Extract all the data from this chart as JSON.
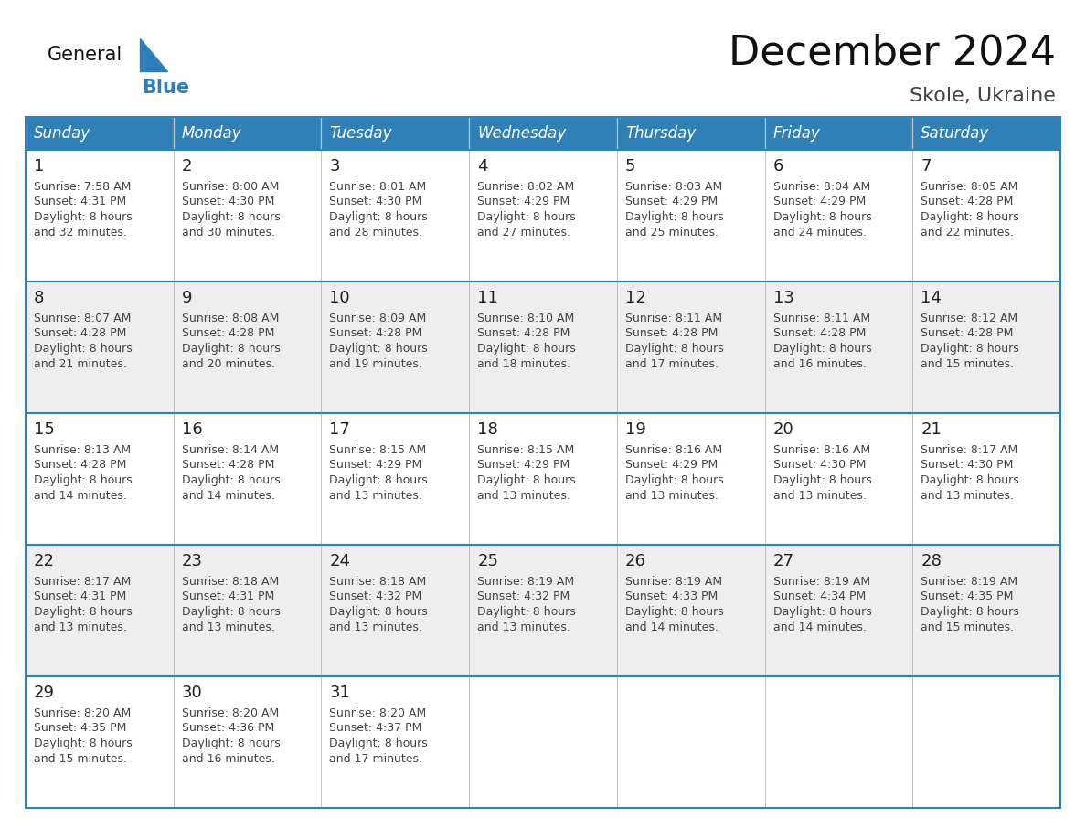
{
  "title": "December 2024",
  "subtitle": "Skole, Ukraine",
  "days_of_week": [
    "Sunday",
    "Monday",
    "Tuesday",
    "Wednesday",
    "Thursday",
    "Friday",
    "Saturday"
  ],
  "header_bg": "#3080B8",
  "header_text_color": "#FFFFFF",
  "cell_bg_white": "#FFFFFF",
  "cell_bg_gray": "#EEEEEE",
  "border_color": "#3080B8",
  "grid_color": "#AAAAAA",
  "day_num_color": "#222222",
  "text_color": "#444444",
  "title_color": "#111111",
  "subtitle_color": "#444444",
  "logo_general_color": "#111111",
  "logo_blue_color": "#2E7EB8",
  "logo_triangle_color": "#2E7EB8",
  "weeks": [
    [
      {
        "day": 1,
        "sunrise": "7:58 AM",
        "sunset": "4:31 PM",
        "daylight": "8 hours and 32 minutes."
      },
      {
        "day": 2,
        "sunrise": "8:00 AM",
        "sunset": "4:30 PM",
        "daylight": "8 hours and 30 minutes."
      },
      {
        "day": 3,
        "sunrise": "8:01 AM",
        "sunset": "4:30 PM",
        "daylight": "8 hours and 28 minutes."
      },
      {
        "day": 4,
        "sunrise": "8:02 AM",
        "sunset": "4:29 PM",
        "daylight": "8 hours and 27 minutes."
      },
      {
        "day": 5,
        "sunrise": "8:03 AM",
        "sunset": "4:29 PM",
        "daylight": "8 hours and 25 minutes."
      },
      {
        "day": 6,
        "sunrise": "8:04 AM",
        "sunset": "4:29 PM",
        "daylight": "8 hours and 24 minutes."
      },
      {
        "day": 7,
        "sunrise": "8:05 AM",
        "sunset": "4:28 PM",
        "daylight": "8 hours and 22 minutes."
      }
    ],
    [
      {
        "day": 8,
        "sunrise": "8:07 AM",
        "sunset": "4:28 PM",
        "daylight": "8 hours and 21 minutes."
      },
      {
        "day": 9,
        "sunrise": "8:08 AM",
        "sunset": "4:28 PM",
        "daylight": "8 hours and 20 minutes."
      },
      {
        "day": 10,
        "sunrise": "8:09 AM",
        "sunset": "4:28 PM",
        "daylight": "8 hours and 19 minutes."
      },
      {
        "day": 11,
        "sunrise": "8:10 AM",
        "sunset": "4:28 PM",
        "daylight": "8 hours and 18 minutes."
      },
      {
        "day": 12,
        "sunrise": "8:11 AM",
        "sunset": "4:28 PM",
        "daylight": "8 hours and 17 minutes."
      },
      {
        "day": 13,
        "sunrise": "8:11 AM",
        "sunset": "4:28 PM",
        "daylight": "8 hours and 16 minutes."
      },
      {
        "day": 14,
        "sunrise": "8:12 AM",
        "sunset": "4:28 PM",
        "daylight": "8 hours and 15 minutes."
      }
    ],
    [
      {
        "day": 15,
        "sunrise": "8:13 AM",
        "sunset": "4:28 PM",
        "daylight": "8 hours and 14 minutes."
      },
      {
        "day": 16,
        "sunrise": "8:14 AM",
        "sunset": "4:28 PM",
        "daylight": "8 hours and 14 minutes."
      },
      {
        "day": 17,
        "sunrise": "8:15 AM",
        "sunset": "4:29 PM",
        "daylight": "8 hours and 13 minutes."
      },
      {
        "day": 18,
        "sunrise": "8:15 AM",
        "sunset": "4:29 PM",
        "daylight": "8 hours and 13 minutes."
      },
      {
        "day": 19,
        "sunrise": "8:16 AM",
        "sunset": "4:29 PM",
        "daylight": "8 hours and 13 minutes."
      },
      {
        "day": 20,
        "sunrise": "8:16 AM",
        "sunset": "4:30 PM",
        "daylight": "8 hours and 13 minutes."
      },
      {
        "day": 21,
        "sunrise": "8:17 AM",
        "sunset": "4:30 PM",
        "daylight": "8 hours and 13 minutes."
      }
    ],
    [
      {
        "day": 22,
        "sunrise": "8:17 AM",
        "sunset": "4:31 PM",
        "daylight": "8 hours and 13 minutes."
      },
      {
        "day": 23,
        "sunrise": "8:18 AM",
        "sunset": "4:31 PM",
        "daylight": "8 hours and 13 minutes."
      },
      {
        "day": 24,
        "sunrise": "8:18 AM",
        "sunset": "4:32 PM",
        "daylight": "8 hours and 13 minutes."
      },
      {
        "day": 25,
        "sunrise": "8:19 AM",
        "sunset": "4:32 PM",
        "daylight": "8 hours and 13 minutes."
      },
      {
        "day": 26,
        "sunrise": "8:19 AM",
        "sunset": "4:33 PM",
        "daylight": "8 hours and 14 minutes."
      },
      {
        "day": 27,
        "sunrise": "8:19 AM",
        "sunset": "4:34 PM",
        "daylight": "8 hours and 14 minutes."
      },
      {
        "day": 28,
        "sunrise": "8:19 AM",
        "sunset": "4:35 PM",
        "daylight": "8 hours and 15 minutes."
      }
    ],
    [
      {
        "day": 29,
        "sunrise": "8:20 AM",
        "sunset": "4:35 PM",
        "daylight": "8 hours and 15 minutes."
      },
      {
        "day": 30,
        "sunrise": "8:20 AM",
        "sunset": "4:36 PM",
        "daylight": "8 hours and 16 minutes."
      },
      {
        "day": 31,
        "sunrise": "8:20 AM",
        "sunset": "4:37 PM",
        "daylight": "8 hours and 17 minutes."
      },
      null,
      null,
      null,
      null
    ]
  ]
}
